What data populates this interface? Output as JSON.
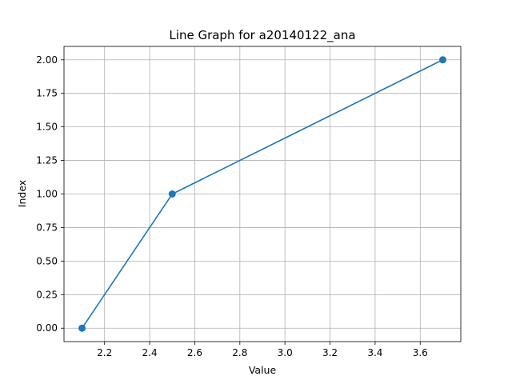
{
  "chart_data": {
    "type": "line",
    "title": "Line Graph for a20140122_ana",
    "xlabel": "Value",
    "ylabel": "Index",
    "x": [
      2.1,
      2.5,
      3.7
    ],
    "y": [
      0,
      1,
      2
    ],
    "series_color": "#1f77b4",
    "marker": "circle",
    "grid": true,
    "xlim": [
      2.02,
      3.78
    ],
    "ylim": [
      -0.1,
      2.1
    ],
    "xticks": [
      2.2,
      2.4,
      2.6,
      2.8,
      3.0,
      3.2,
      3.4,
      3.6
    ],
    "xtick_labels": [
      "2.2",
      "2.4",
      "2.6",
      "2.8",
      "3.0",
      "3.2",
      "3.4",
      "3.6"
    ],
    "yticks": [
      0.0,
      0.25,
      0.5,
      0.75,
      1.0,
      1.25,
      1.5,
      1.75,
      2.0
    ],
    "ytick_labels": [
      "0.00",
      "0.25",
      "0.50",
      "0.75",
      "1.00",
      "1.25",
      "1.50",
      "1.75",
      "2.00"
    ]
  }
}
